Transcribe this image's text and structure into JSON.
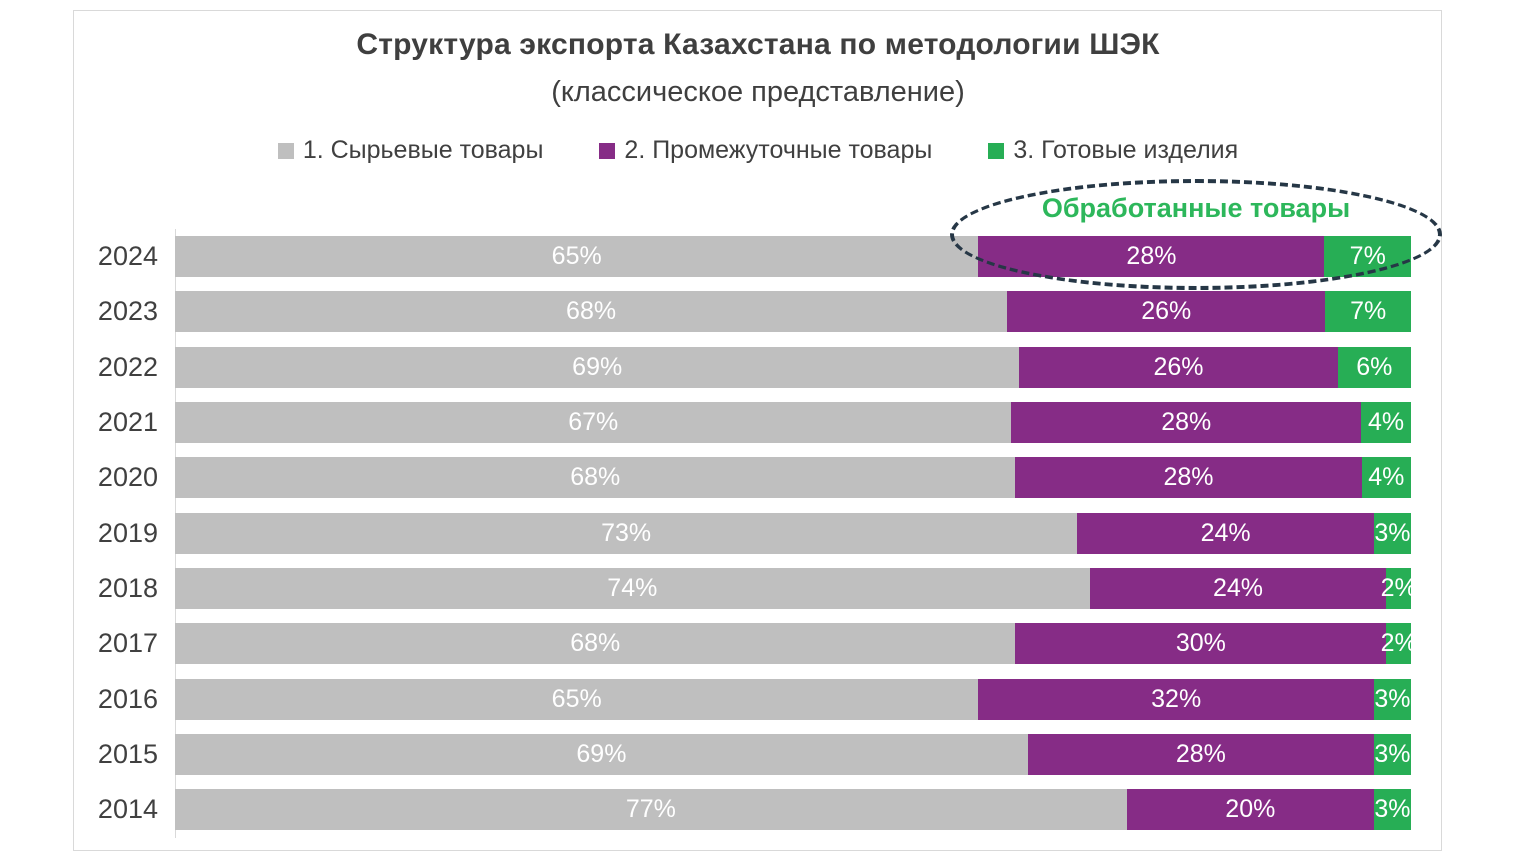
{
  "chart": {
    "title": "Структура экспорта Казахстана по методологии ШЭК",
    "subtitle": "(классическое представление)",
    "annotation": {
      "label": "Обработанные товары",
      "text_color": "#2db75b",
      "ellipse_color": "#263746"
    }
  },
  "chart_data": {
    "type": "bar",
    "orientation": "horizontal-stacked",
    "title": "Структура экспорта Казахстана по методологии ШЭК (классическое представление)",
    "categories": [
      "2024",
      "2023",
      "2022",
      "2021",
      "2020",
      "2019",
      "2018",
      "2017",
      "2016",
      "2015",
      "2014"
    ],
    "series": [
      {
        "name": "1. Сырьевые товары",
        "color": "#bfbfbf",
        "values": [
          65,
          68,
          69,
          67,
          68,
          73,
          74,
          68,
          65,
          69,
          77
        ]
      },
      {
        "name": "2. Промежуточные товары",
        "color": "#862c86",
        "values": [
          28,
          26,
          26,
          28,
          28,
          24,
          24,
          30,
          32,
          28,
          20
        ]
      },
      {
        "name": "3. Готовые изделия",
        "color": "#27ae55",
        "values": [
          7,
          7,
          6,
          4,
          4,
          3,
          2,
          2,
          3,
          3,
          3
        ]
      }
    ],
    "value_suffix": "%",
    "xlim": [
      0,
      100
    ],
    "xlabel": "",
    "ylabel": "",
    "grid": false,
    "legend_position": "top",
    "label_color": "#ffffff"
  }
}
